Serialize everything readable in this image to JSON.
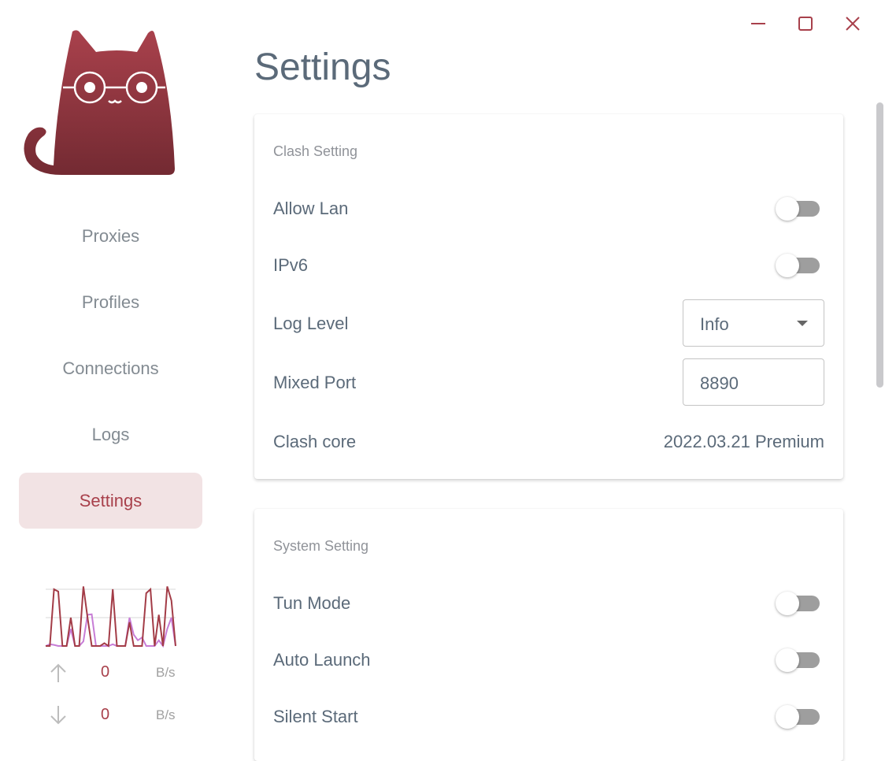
{
  "window": {
    "controls": [
      "minimize-icon",
      "maximize-icon",
      "close-icon"
    ],
    "accent": "#a8404b"
  },
  "sidebar": {
    "items": [
      {
        "label": "Proxies",
        "active": false
      },
      {
        "label": "Profiles",
        "active": false
      },
      {
        "label": "Connections",
        "active": false
      },
      {
        "label": "Logs",
        "active": false
      },
      {
        "label": "Settings",
        "active": true
      }
    ],
    "traffic": {
      "upload": {
        "value": "0",
        "unit": "B/s"
      },
      "download": {
        "value": "0",
        "unit": "B/s"
      },
      "upload_series": [
        0,
        0,
        1,
        0.96,
        0,
        0,
        0.5,
        0,
        0,
        1.05,
        0.5,
        0,
        0,
        0,
        0.05,
        0,
        1,
        0,
        0,
        0,
        0.42,
        0,
        0,
        0,
        0.93,
        1,
        0,
        0.55,
        0,
        1.05,
        0.8,
        0
      ],
      "download_series": [
        0,
        0.03,
        0.02,
        0,
        0,
        0,
        0.3,
        0,
        0,
        0.08,
        0.55,
        0.56,
        0,
        0,
        0,
        0,
        0.03,
        0,
        0,
        0,
        0.5,
        0.2,
        0.1,
        0.15,
        0,
        0,
        0,
        0.1,
        0,
        0.3,
        0.5,
        0
      ]
    }
  },
  "main": {
    "title": "Settings",
    "clash": {
      "title": "Clash Setting",
      "allow_lan": {
        "label": "Allow Lan",
        "on": false
      },
      "ipv6": {
        "label": "IPv6",
        "on": false
      },
      "log_level": {
        "label": "Log Level",
        "value": "Info"
      },
      "mixed_port": {
        "label": "Mixed Port",
        "value": "8890"
      },
      "core": {
        "label": "Clash core",
        "value": "2022.03.21 Premium"
      }
    },
    "system": {
      "title": "System Setting",
      "tun_mode": {
        "label": "Tun Mode",
        "on": false
      },
      "auto_launch": {
        "label": "Auto Launch",
        "on": false
      },
      "silent_start": {
        "label": "Silent Start",
        "on": false
      }
    }
  }
}
